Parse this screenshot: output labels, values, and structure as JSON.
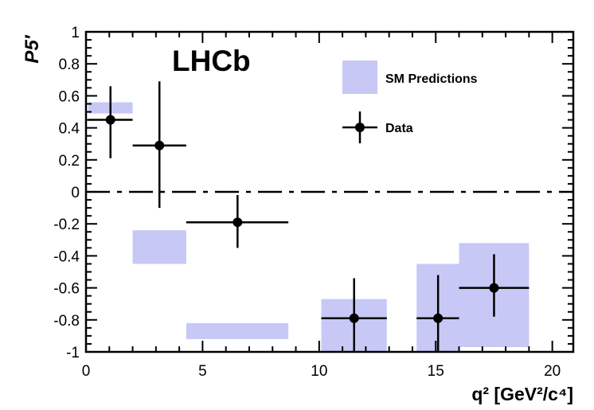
{
  "chart_data": {
    "type": "scatter",
    "ylabel": "P5′",
    "xlabel": "q² [GeV²/c⁴]",
    "xlim": [
      0,
      20.9
    ],
    "ylim": [
      -1,
      1
    ],
    "x_ticks": [
      0,
      5,
      10,
      15,
      20
    ],
    "y_ticks": [
      -1,
      -0.8,
      -0.6,
      -0.4,
      -0.2,
      0,
      0.2,
      0.4,
      0.6,
      0.8,
      1
    ],
    "annotations": [
      {
        "text": "LHCb"
      }
    ],
    "reference_line": {
      "y": 0,
      "style": "dash-dot"
    },
    "legend": {
      "placement": "top-right",
      "entries": [
        "SM Predictions",
        "Data"
      ]
    },
    "series": [
      {
        "name": "SM Predictions",
        "kind": "band",
        "color": "#c8c8f6",
        "boxes": [
          {
            "x0": 0.1,
            "x1": 2.0,
            "y0": 0.49,
            "y1": 0.56
          },
          {
            "x0": 2.0,
            "x1": 4.3,
            "y0": -0.45,
            "y1": -0.24
          },
          {
            "x0": 4.3,
            "x1": 8.68,
            "y0": -0.92,
            "y1": -0.82
          },
          {
            "x0": 10.09,
            "x1": 12.9,
            "y0": -1.0,
            "y1": -0.67
          },
          {
            "x0": 14.18,
            "x1": 16.0,
            "y0": -1.0,
            "y1": -0.45
          },
          {
            "x0": 16.0,
            "x1": 19.0,
            "y0": -0.97,
            "y1": -0.32
          }
        ]
      },
      {
        "name": "Data",
        "kind": "points",
        "color": "#000000",
        "points": [
          {
            "x": 1.05,
            "y": 0.45,
            "xlo": 0.1,
            "xhi": 2.0,
            "ylo": 0.21,
            "yhi": 0.66
          },
          {
            "x": 3.15,
            "y": 0.29,
            "xlo": 2.0,
            "xhi": 4.3,
            "ylo": -0.1,
            "yhi": 0.69
          },
          {
            "x": 6.5,
            "y": -0.19,
            "xlo": 4.3,
            "xhi": 8.68,
            "ylo": -0.35,
            "yhi": -0.02
          },
          {
            "x": 11.5,
            "y": -0.79,
            "xlo": 10.09,
            "xhi": 12.9,
            "ylo": -1.0,
            "yhi": -0.54
          },
          {
            "x": 15.1,
            "y": -0.79,
            "xlo": 14.18,
            "xhi": 16.0,
            "ylo": -1.0,
            "yhi": -0.52
          },
          {
            "x": 17.5,
            "y": -0.6,
            "xlo": 16.0,
            "xhi": 19.0,
            "ylo": -0.78,
            "yhi": -0.39
          }
        ]
      }
    ]
  }
}
